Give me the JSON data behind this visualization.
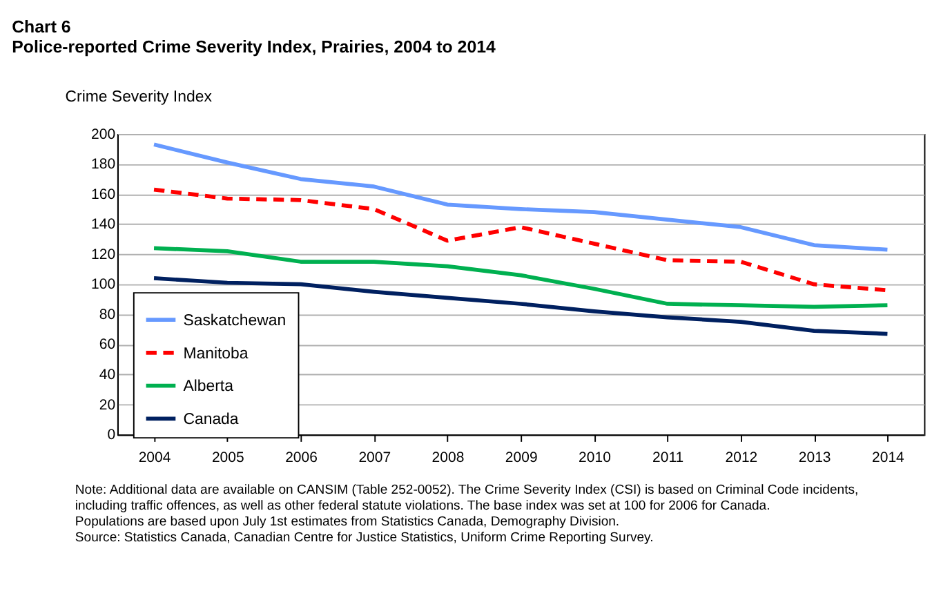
{
  "chart_data": {
    "type": "line",
    "title": "Chart 6",
    "subtitle": "Police-reported Crime Severity Index, Prairies, 2004 to 2014",
    "ylabel": "Crime Severity Index",
    "categories": [
      "2004",
      "2005",
      "2006",
      "2007",
      "2008",
      "2009",
      "2010",
      "2011",
      "2012",
      "2013",
      "2014"
    ],
    "series": [
      {
        "name": "Saskatchewan",
        "color": "#6699ff",
        "line_style": "solid",
        "values": [
          193,
          181,
          170,
          165,
          153,
          150,
          148,
          143,
          138,
          126,
          123
        ]
      },
      {
        "name": "Manitoba",
        "color": "#ff0000",
        "line_style": "dashed",
        "values": [
          163,
          157,
          156,
          150,
          129,
          138,
          127,
          116,
          115,
          100,
          96
        ]
      },
      {
        "name": "Alberta",
        "color": "#00b050",
        "line_style": "solid",
        "values": [
          124,
          122,
          115,
          115,
          112,
          106,
          97,
          87,
          86,
          85,
          86
        ]
      },
      {
        "name": "Canada",
        "color": "#002060",
        "line_style": "solid",
        "values": [
          104,
          101,
          100,
          95,
          91,
          87,
          82,
          78,
          75,
          69,
          67
        ]
      }
    ],
    "ylim": [
      0,
      200
    ],
    "yticks": [
      0,
      20,
      40,
      60,
      80,
      100,
      120,
      140,
      160,
      180,
      200
    ],
    "grid": "y",
    "legend": "bottom left",
    "marker": "none",
    "annotations": [
      "Note: Additional data are available on CANSIM (Table 252-0052). The Crime Severity Index (CSI) is based on Criminal Code incidents, including traffic offences, as well as other federal statute violations. The base index was set at 100 for 2006 for Canada. Populations are based upon July 1st estimates from Statistics Canada, Demography Division.",
      "Source: Statistics Canada, Canadian Centre for Justice Statistics, Uniform Crime Reporting Survey."
    ]
  }
}
